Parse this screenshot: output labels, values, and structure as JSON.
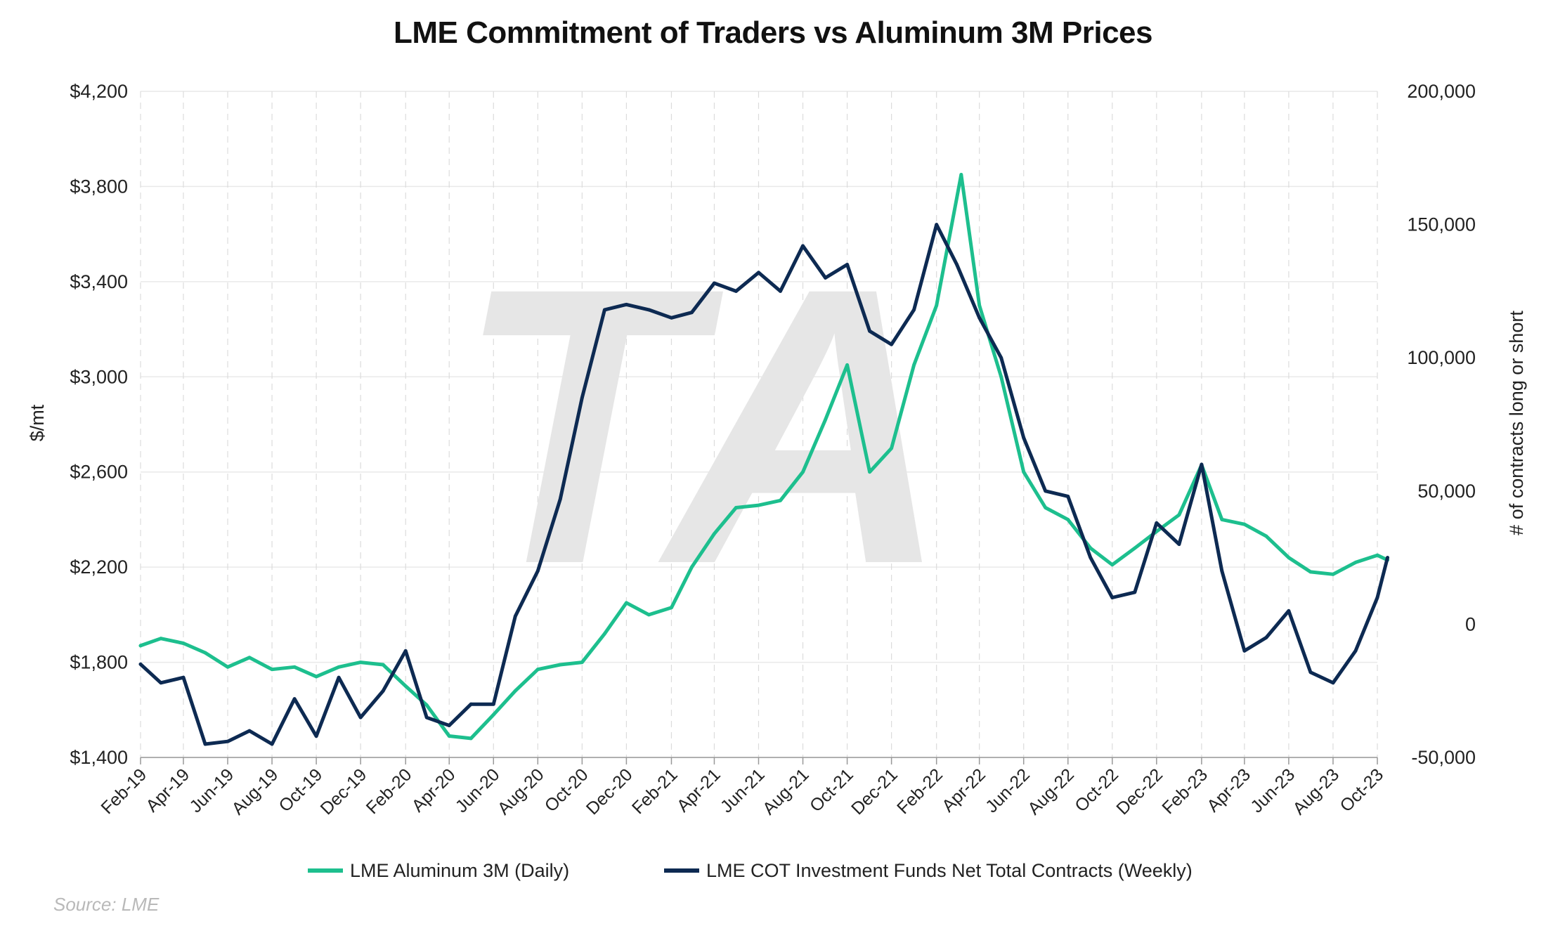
{
  "chart_data": {
    "type": "line",
    "title": "LME Commitment of Traders vs Aluminum 3M Prices",
    "source": "Source: LME",
    "watermark": "TA",
    "y_left": {
      "label": "$/mt",
      "lim": [
        1400,
        4200
      ],
      "ticks": [
        1400,
        1800,
        2200,
        2600,
        3000,
        3400,
        3800,
        4200
      ],
      "tick_labels": [
        "$1,400",
        "$1,800",
        "$2,200",
        "$2,600",
        "$3,000",
        "$3,400",
        "$3,800",
        "$4,200"
      ]
    },
    "y_right": {
      "label": "# of contracts long or short",
      "lim": [
        -50000,
        200000
      ],
      "ticks": [
        -50000,
        0,
        50000,
        100000,
        150000,
        200000
      ],
      "tick_labels": [
        "-50,000",
        "0",
        "50,000",
        "100,000",
        "150,000",
        "200,000"
      ]
    },
    "x_tick_labels": [
      "Feb-19",
      "Apr-19",
      "Jun-19",
      "Aug-19",
      "Oct-19",
      "Dec-19",
      "Feb-20",
      "Apr-20",
      "Jun-20",
      "Aug-20",
      "Oct-20",
      "Dec-20",
      "Feb-21",
      "Apr-21",
      "Jun-21",
      "Aug-21",
      "Oct-21",
      "Dec-21",
      "Feb-22",
      "Apr-22",
      "Jun-22",
      "Aug-22",
      "Oct-22",
      "Dec-22",
      "Feb-23",
      "Apr-23",
      "Jun-23",
      "Aug-23",
      "Oct-23"
    ],
    "grid": true,
    "legend_position": "bottom",
    "series": [
      {
        "name": "LME Aluminum 3M (Daily)",
        "axis": "left",
        "color": "#1dbf8e",
        "x": [
          "2019-02-01",
          "2019-03-01",
          "2019-04-01",
          "2019-05-01",
          "2019-06-01",
          "2019-07-01",
          "2019-08-01",
          "2019-09-01",
          "2019-10-01",
          "2019-11-01",
          "2019-12-01",
          "2020-01-01",
          "2020-02-01",
          "2020-03-01",
          "2020-04-01",
          "2020-05-01",
          "2020-06-01",
          "2020-07-01",
          "2020-08-01",
          "2020-09-01",
          "2020-10-01",
          "2020-11-01",
          "2020-12-01",
          "2021-01-01",
          "2021-02-01",
          "2021-03-01",
          "2021-04-01",
          "2021-05-01",
          "2021-06-01",
          "2021-07-01",
          "2021-08-01",
          "2021-09-01",
          "2021-10-01",
          "2021-11-01",
          "2021-12-01",
          "2022-01-01",
          "2022-02-01",
          "2022-03-07",
          "2022-04-01",
          "2022-05-01",
          "2022-06-01",
          "2022-07-01",
          "2022-08-01",
          "2022-09-01",
          "2022-10-01",
          "2022-11-01",
          "2022-12-01",
          "2023-01-01",
          "2023-02-01",
          "2023-03-01",
          "2023-04-01",
          "2023-05-01",
          "2023-06-01",
          "2023-07-01",
          "2023-08-01",
          "2023-09-01",
          "2023-10-01",
          "2023-10-15"
        ],
        "values": [
          1870,
          1900,
          1880,
          1840,
          1780,
          1820,
          1770,
          1780,
          1740,
          1780,
          1800,
          1790,
          1700,
          1620,
          1490,
          1480,
          1580,
          1680,
          1770,
          1790,
          1800,
          1920,
          2050,
          2000,
          2030,
          2200,
          2340,
          2450,
          2460,
          2480,
          2600,
          2820,
          3050,
          2600,
          2700,
          3050,
          3300,
          3850,
          3300,
          3000,
          2600,
          2450,
          2400,
          2280,
          2210,
          2280,
          2350,
          2420,
          2630,
          2400,
          2380,
          2330,
          2240,
          2180,
          2170,
          2220,
          2250,
          2230
        ]
      },
      {
        "name": "LME COT Investment Funds Net Total Contracts (Weekly)",
        "axis": "right",
        "color": "#0d2a52",
        "x": [
          "2019-02-01",
          "2019-03-01",
          "2019-04-01",
          "2019-05-01",
          "2019-06-01",
          "2019-07-01",
          "2019-08-01",
          "2019-09-01",
          "2019-10-01",
          "2019-11-01",
          "2019-12-01",
          "2020-01-01",
          "2020-02-01",
          "2020-03-01",
          "2020-04-01",
          "2020-05-01",
          "2020-06-01",
          "2020-07-01",
          "2020-08-01",
          "2020-09-01",
          "2020-10-01",
          "2020-11-01",
          "2020-12-01",
          "2021-01-01",
          "2021-02-01",
          "2021-03-01",
          "2021-04-01",
          "2021-05-01",
          "2021-06-01",
          "2021-07-01",
          "2021-08-01",
          "2021-09-01",
          "2021-10-01",
          "2021-11-01",
          "2021-12-01",
          "2022-01-01",
          "2022-02-01",
          "2022-03-01",
          "2022-04-01",
          "2022-05-01",
          "2022-06-01",
          "2022-07-01",
          "2022-08-01",
          "2022-09-01",
          "2022-10-01",
          "2022-11-01",
          "2022-12-01",
          "2023-01-01",
          "2023-02-01",
          "2023-03-01",
          "2023-04-01",
          "2023-05-01",
          "2023-06-01",
          "2023-07-01",
          "2023-08-01",
          "2023-09-01",
          "2023-10-01",
          "2023-10-15"
        ],
        "values": [
          -15000,
          -22000,
          -20000,
          -45000,
          -44000,
          -40000,
          -45000,
          -28000,
          -42000,
          -20000,
          -35000,
          -25000,
          -10000,
          -35000,
          -38000,
          -30000,
          -30000,
          3000,
          20000,
          47000,
          85000,
          118000,
          120000,
          118000,
          115000,
          117000,
          128000,
          125000,
          132000,
          125000,
          142000,
          130000,
          135000,
          110000,
          105000,
          118000,
          150000,
          135000,
          115000,
          100000,
          70000,
          50000,
          48000,
          25000,
          10000,
          12000,
          38000,
          30000,
          60000,
          20000,
          -10000,
          -5000,
          5000,
          -18000,
          -22000,
          -10000,
          10000,
          25000
        ]
      }
    ]
  }
}
